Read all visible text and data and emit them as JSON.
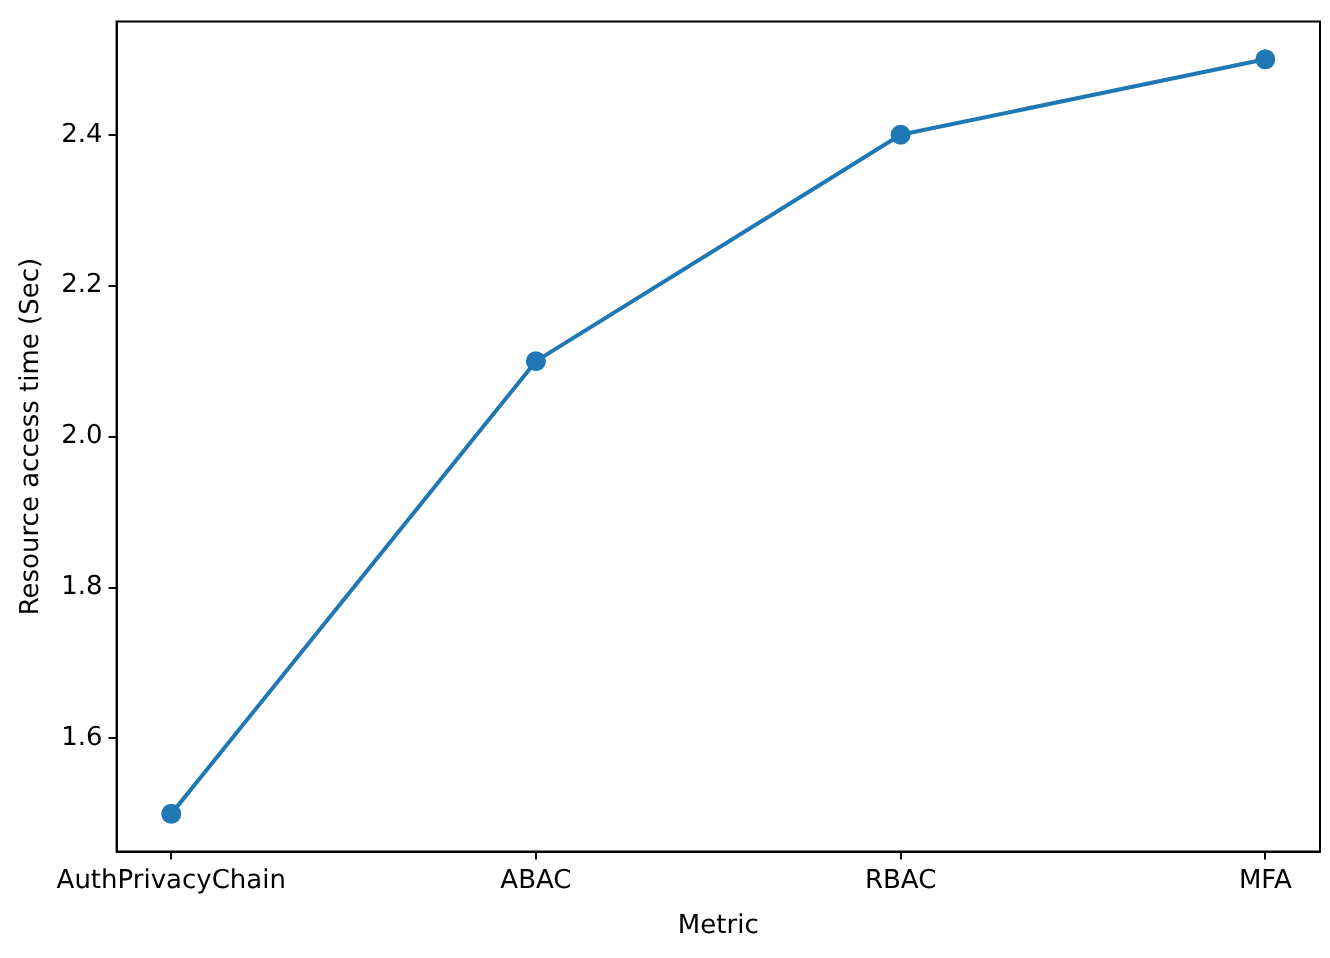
{
  "chart_data": {
    "type": "line",
    "xlabel": "Metric",
    "ylabel": "Resource access time (Sec)",
    "categories": [
      "AuthPrivacyChain",
      "ABAC",
      "RBAC",
      "MFA"
    ],
    "series": [
      {
        "color": "#1f77b4",
        "values": [
          1.5,
          2.1,
          2.4,
          2.5
        ]
      }
    ],
    "ylim": [
      1.45,
      2.55
    ],
    "yticks": [
      1.6,
      1.8,
      {
        "value": 2,
        "label": "2.0"
      },
      2.2,
      2.4
    ],
    "grid": false,
    "legend": false,
    "marker": "circle",
    "line_style": "solid"
  }
}
